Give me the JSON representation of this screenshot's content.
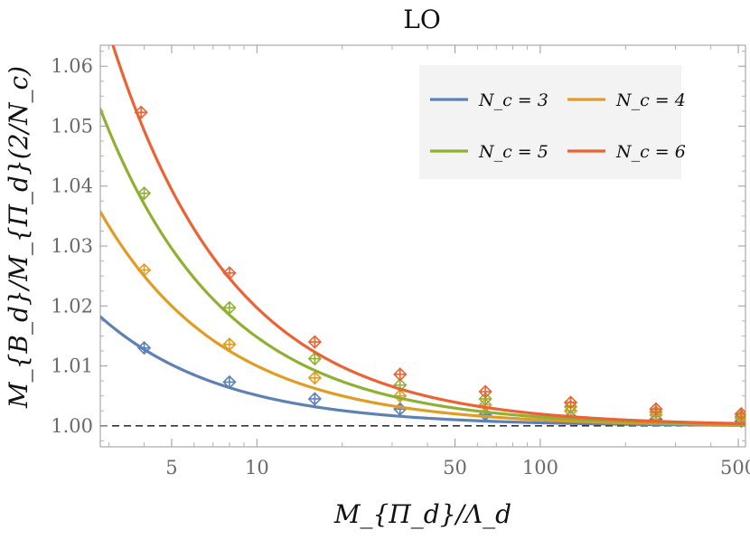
{
  "chart_data": {
    "type": "line",
    "title": "LO",
    "xlabel": "M_{Π_d}/Λ_d",
    "ylabel": "M_{B_d}/M_{Π_d}(2/N_c)",
    "xscale": "log",
    "xlim": [
      2.8,
      530
    ],
    "ylim": [
      0.9965,
      1.0635
    ],
    "xticks": [
      5,
      10,
      50,
      100,
      500
    ],
    "xtick_labels": [
      "5",
      "10",
      "50",
      "100",
      "500"
    ],
    "yticks": [
      1.0,
      1.01,
      1.02,
      1.03,
      1.04,
      1.05,
      1.06
    ],
    "ytick_labels": [
      "1.00",
      "1.01",
      "1.02",
      "1.03",
      "1.04",
      "1.05",
      "1.06"
    ],
    "reference_line": {
      "y": 1.0,
      "style": "dashed"
    },
    "legend": {
      "placement": "top-right",
      "labels": [
        "N_c = 3",
        "N_c = 4",
        "N_c = 5",
        "N_c = 6"
      ]
    },
    "series": [
      {
        "name": "N_c = 3",
        "color": "#5e81b5",
        "coef": 0.051,
        "points": [
          {
            "x": 4,
            "y": 1.013
          },
          {
            "x": 8,
            "y": 1.0073
          },
          {
            "x": 16,
            "y": 1.0045
          },
          {
            "x": 32,
            "y": 1.0028
          },
          {
            "x": 64,
            "y": 1.0019
          },
          {
            "x": 128,
            "y": 1.0015
          },
          {
            "x": 256,
            "y": 1.0011
          },
          {
            "x": 512,
            "y": 1.0008
          }
        ]
      },
      {
        "name": "N_c = 4",
        "color": "#e19c24",
        "coef": 0.1,
        "points": [
          {
            "x": 4,
            "y": 1.026
          },
          {
            "x": 8,
            "y": 1.0136
          },
          {
            "x": 16,
            "y": 1.008
          },
          {
            "x": 32,
            "y": 1.005
          },
          {
            "x": 64,
            "y": 1.0035
          },
          {
            "x": 128,
            "y": 1.0025
          },
          {
            "x": 256,
            "y": 1.0018
          },
          {
            "x": 512,
            "y": 1.0013
          }
        ]
      },
      {
        "name": "N_c = 5",
        "color": "#8fb032",
        "coef": 0.148,
        "points": [
          {
            "x": 4,
            "y": 1.0388
          },
          {
            "x": 8,
            "y": 1.0197
          },
          {
            "x": 16,
            "y": 1.0112
          },
          {
            "x": 32,
            "y": 1.0068
          },
          {
            "x": 64,
            "y": 1.0045
          },
          {
            "x": 128,
            "y": 1.0032
          },
          {
            "x": 256,
            "y": 1.0023
          },
          {
            "x": 512,
            "y": 1.0016
          }
        ]
      },
      {
        "name": "N_c = 6",
        "color": "#eb6235",
        "coef": 0.197,
        "points": [
          {
            "x": 3.9,
            "y": 1.0523
          },
          {
            "x": 8,
            "y": 1.0255
          },
          {
            "x": 16,
            "y": 1.014
          },
          {
            "x": 32,
            "y": 1.0086
          },
          {
            "x": 64,
            "y": 1.0057
          },
          {
            "x": 128,
            "y": 1.0039
          },
          {
            "x": 256,
            "y": 1.0028
          },
          {
            "x": 512,
            "y": 1.002
          }
        ]
      }
    ]
  }
}
